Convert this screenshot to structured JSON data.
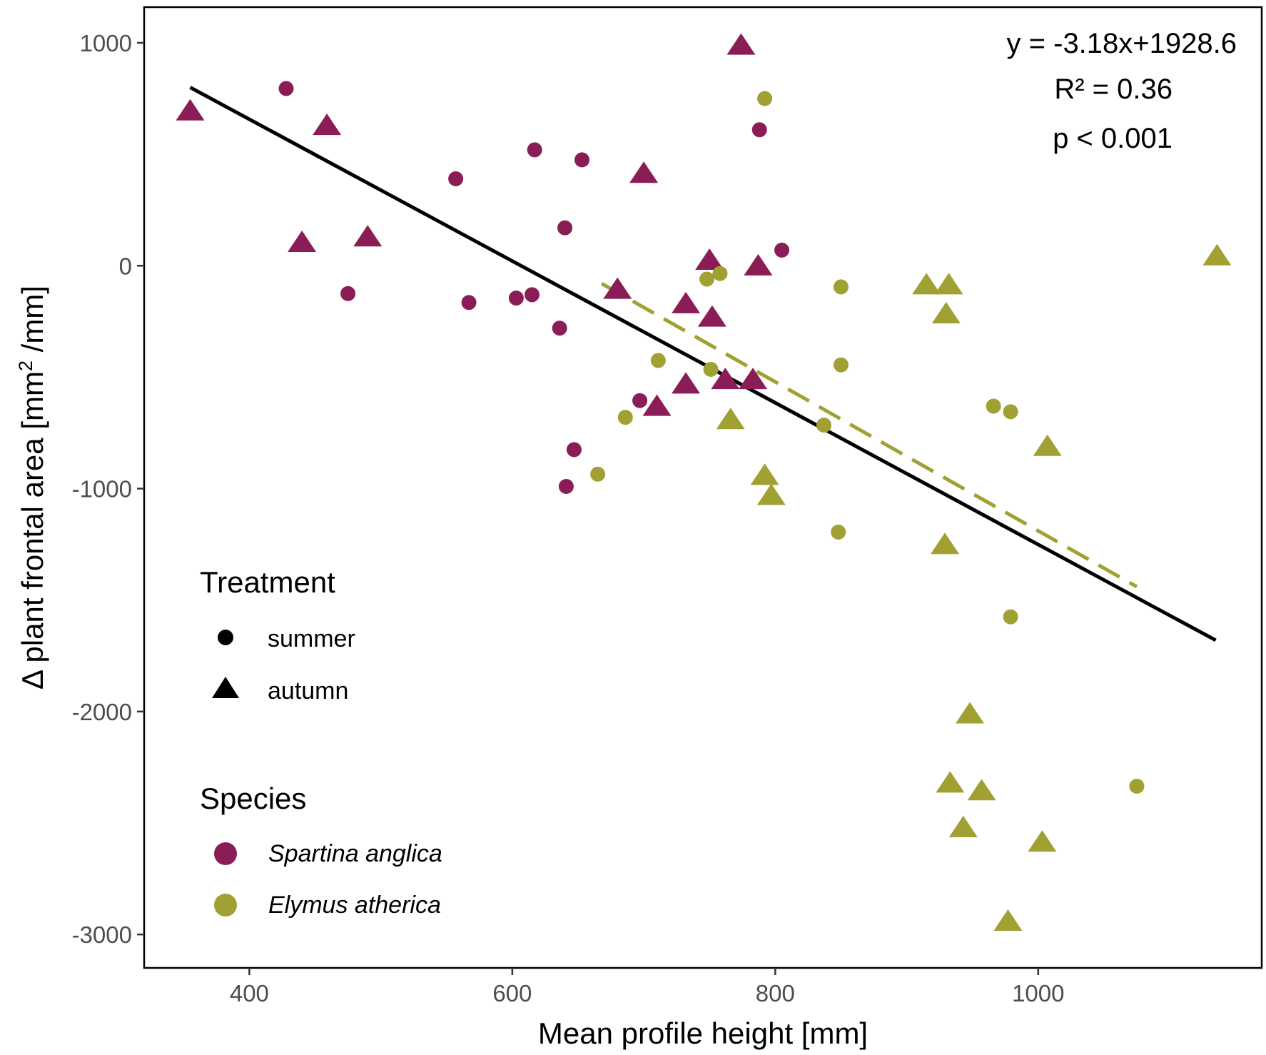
{
  "chart_data": {
    "type": "scatter",
    "title": "",
    "xlabel": "Mean profile height [mm]",
    "ylabel_parts": {
      "before": "Δ plant frontal area [mm",
      "superscript": "2",
      "after": " /mm]"
    },
    "xlim": [
      320,
      1170
    ],
    "ylim": [
      -3150,
      1160
    ],
    "x_ticks": [
      400,
      600,
      800,
      1000
    ],
    "y_ticks": [
      1000,
      0,
      -1000,
      -2000,
      -3000
    ],
    "x_tick_labels": [
      "400",
      "600",
      "800",
      "1000"
    ],
    "y_tick_labels": [
      "1000",
      "0",
      "-1000",
      "-2000",
      "-3000"
    ],
    "grid": false,
    "colors": {
      "spartina": "#8b1d56",
      "elymus": "#a0a033",
      "regression": "#000000"
    },
    "annotations": {
      "equation": "y = -3.18x+1928.6",
      "r2": "R² = 0.36",
      "p": "p < 0.001"
    },
    "regression_lines": [
      {
        "name": "overall",
        "style": "solid",
        "color": "#000000",
        "x": [
          355,
          1135
        ],
        "y": [
          800,
          -1680
        ]
      },
      {
        "name": "Elymus athericus",
        "style": "dashed",
        "color": "#a0a033",
        "x": [
          668,
          1075
        ],
        "y": [
          -80,
          -1440
        ]
      }
    ],
    "legend": {
      "treatment_title": "Treatment",
      "treatment_items": [
        {
          "label": "summer",
          "shape": "circle"
        },
        {
          "label": "autumn",
          "shape": "triangle"
        }
      ],
      "species_title": "Species",
      "species_items": [
        {
          "label": "Spartina anglica",
          "species": "spartina"
        },
        {
          "label": "Elymus atherica",
          "species": "elymus"
        }
      ]
    },
    "series": [
      {
        "name": "Spartina anglica - summer",
        "species": "spartina",
        "shape": "circle",
        "points": [
          {
            "x": 428,
            "y": 795
          },
          {
            "x": 557,
            "y": 390
          },
          {
            "x": 567,
            "y": -165
          },
          {
            "x": 603,
            "y": -145
          },
          {
            "x": 615,
            "y": -130
          },
          {
            "x": 617,
            "y": 520
          },
          {
            "x": 636,
            "y": -280
          },
          {
            "x": 640,
            "y": 170
          },
          {
            "x": 641,
            "y": -990
          },
          {
            "x": 647,
            "y": -825
          },
          {
            "x": 653,
            "y": 475
          },
          {
            "x": 697,
            "y": -605
          },
          {
            "x": 788,
            "y": 610
          },
          {
            "x": 805,
            "y": 70
          },
          {
            "x": 475,
            "y": -125
          }
        ]
      },
      {
        "name": "Spartina anglica - autumn",
        "species": "spartina",
        "shape": "triangle",
        "points": [
          {
            "x": 355,
            "y": 690
          },
          {
            "x": 440,
            "y": 100
          },
          {
            "x": 459,
            "y": 625
          },
          {
            "x": 490,
            "y": 125
          },
          {
            "x": 680,
            "y": -110
          },
          {
            "x": 700,
            "y": 410
          },
          {
            "x": 710,
            "y": -635
          },
          {
            "x": 732,
            "y": -175
          },
          {
            "x": 732,
            "y": -535
          },
          {
            "x": 750,
            "y": 20
          },
          {
            "x": 752,
            "y": -235
          },
          {
            "x": 762,
            "y": -515
          },
          {
            "x": 774,
            "y": 985
          },
          {
            "x": 783,
            "y": -515
          },
          {
            "x": 787,
            "y": -5
          }
        ]
      },
      {
        "name": "Elymus athericus - summer",
        "species": "elymus",
        "shape": "circle",
        "points": [
          {
            "x": 665,
            "y": -935
          },
          {
            "x": 686,
            "y": -680
          },
          {
            "x": 711,
            "y": -425
          },
          {
            "x": 748,
            "y": -60
          },
          {
            "x": 751,
            "y": -465
          },
          {
            "x": 758,
            "y": -35
          },
          {
            "x": 792,
            "y": 750
          },
          {
            "x": 837,
            "y": -715
          },
          {
            "x": 848,
            "y": -1195
          },
          {
            "x": 850,
            "y": -95
          },
          {
            "x": 850,
            "y": -445
          },
          {
            "x": 966,
            "y": -630
          },
          {
            "x": 979,
            "y": -655
          },
          {
            "x": 979,
            "y": -1575
          },
          {
            "x": 1075,
            "y": -2335
          }
        ]
      },
      {
        "name": "Elymus athericus - autumn",
        "species": "elymus",
        "shape": "triangle",
        "points": [
          {
            "x": 766,
            "y": -695
          },
          {
            "x": 792,
            "y": -945
          },
          {
            "x": 797,
            "y": -1035
          },
          {
            "x": 915,
            "y": -90
          },
          {
            "x": 929,
            "y": -1255
          },
          {
            "x": 930,
            "y": -220
          },
          {
            "x": 932,
            "y": -90
          },
          {
            "x": 933,
            "y": -2325
          },
          {
            "x": 943,
            "y": -2525
          },
          {
            "x": 948,
            "y": -2015
          },
          {
            "x": 957,
            "y": -2360
          },
          {
            "x": 977,
            "y": -2945
          },
          {
            "x": 1003,
            "y": -2590
          },
          {
            "x": 1007,
            "y": -815
          },
          {
            "x": 1136,
            "y": 40
          }
        ]
      }
    ]
  }
}
